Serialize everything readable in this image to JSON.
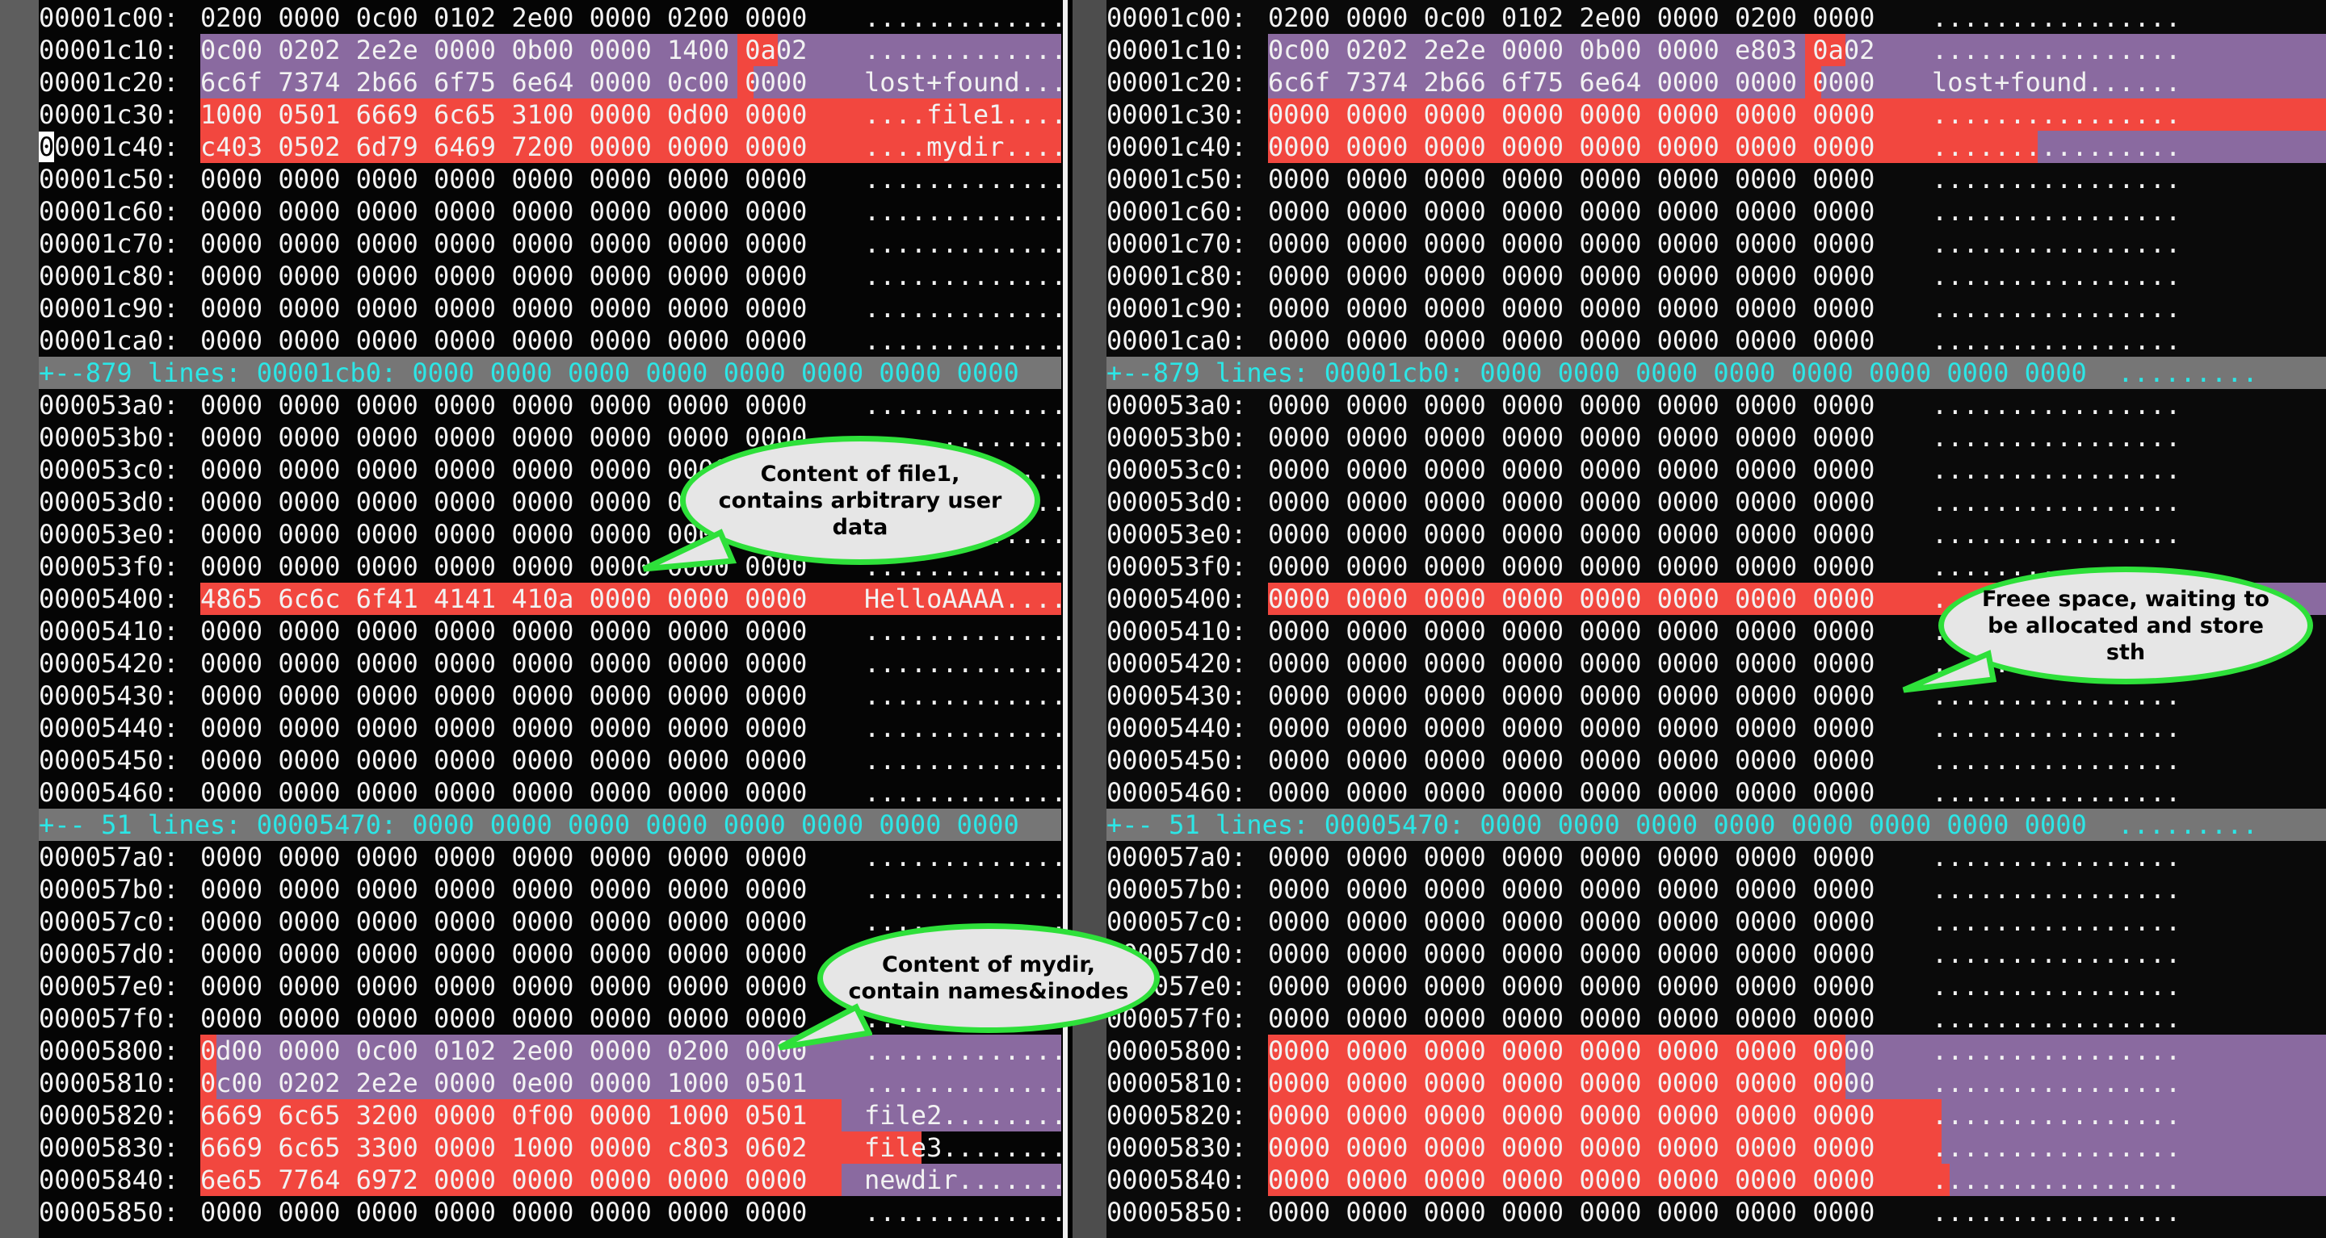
{
  "fold_lines": {
    "first": "+--879 lines: 00001cb0: 0000 0000 0000 0000 0000 0000 0000 0000",
    "second": "+-- 51 lines: 00005470: 0000 0000 0000 0000 0000 0000 0000 0000",
    "sign": "+",
    "right_first": "+--879 lines: 00001cb0: 0000 0000 0000 0000 0000 0000 0000 0000  .........",
    "right_second": "+-- 51 lines: 00005470: 0000 0000 0000 0000 0000 0000 0000 0000  ........."
  },
  "colors": {
    "highlight_purple": "#8a6aa0",
    "highlight_red": "#f2473f",
    "fold_bg": "#767676",
    "fold_text": "#2ce6e6",
    "bubble_border": "#2ee03a"
  },
  "left_pane": {
    "rows": [
      {
        "addr": "00001c00:",
        "hex": "0200 0000 0c00 0102 2e00 0000 0200 0000",
        "text": "................"
      },
      {
        "addr": "00001c10:",
        "hex": "0c00 0202 2e2e 0000 0b00 0000 1400 0a02",
        "text": "................"
      },
      {
        "addr": "00001c20:",
        "hex": "6c6f 7374 2b66 6f75 6e64 0000 0c00 0000",
        "text": "lost+found......"
      },
      {
        "addr": "00001c30:",
        "hex": "1000 0501 6669 6c65 3100 0000 0d00 0000",
        "text": "....file1......."
      },
      {
        "addr": "00001c40:",
        "hex": "c403 0502 6d79 6469 7200 0000 0000 0000",
        "text": "....mydir......."
      },
      {
        "addr": "00001c50:",
        "hex": "0000 0000 0000 0000 0000 0000 0000 0000",
        "text": "................"
      },
      {
        "addr": "00001c60:",
        "hex": "0000 0000 0000 0000 0000 0000 0000 0000",
        "text": "................"
      },
      {
        "addr": "00001c70:",
        "hex": "0000 0000 0000 0000 0000 0000 0000 0000",
        "text": "................"
      },
      {
        "addr": "00001c80:",
        "hex": "0000 0000 0000 0000 0000 0000 0000 0000",
        "text": "................"
      },
      {
        "addr": "00001c90:",
        "hex": "0000 0000 0000 0000 0000 0000 0000 0000",
        "text": "................"
      },
      {
        "addr": "00001ca0:",
        "hex": "0000 0000 0000 0000 0000 0000 0000 0000",
        "text": "................"
      },
      {
        "fold": "first"
      },
      {
        "addr": "000053a0:",
        "hex": "0000 0000 0000 0000 0000 0000 0000 0000",
        "text": "................"
      },
      {
        "addr": "000053b0:",
        "hex": "0000 0000 0000 0000 0000 0000 0000 0000",
        "text": "................"
      },
      {
        "addr": "000053c0:",
        "hex": "0000 0000 0000 0000 0000 0000 0000 0000",
        "text": "................"
      },
      {
        "addr": "000053d0:",
        "hex": "0000 0000 0000 0000 0000 0000 0000 0000",
        "text": "................"
      },
      {
        "addr": "000053e0:",
        "hex": "0000 0000 0000 0000 0000 0000 0000 0000",
        "text": "................"
      },
      {
        "addr": "000053f0:",
        "hex": "0000 0000 0000 0000 0000 0000 0000 0000",
        "text": "................"
      },
      {
        "addr": "00005400:",
        "hex": "4865 6c6c 6f41 4141 410a 0000 0000 0000",
        "text": "HelloAAAA......."
      },
      {
        "addr": "00005410:",
        "hex": "0000 0000 0000 0000 0000 0000 0000 0000",
        "text": "................"
      },
      {
        "addr": "00005420:",
        "hex": "0000 0000 0000 0000 0000 0000 0000 0000",
        "text": "................"
      },
      {
        "addr": "00005430:",
        "hex": "0000 0000 0000 0000 0000 0000 0000 0000",
        "text": "................"
      },
      {
        "addr": "00005440:",
        "hex": "0000 0000 0000 0000 0000 0000 0000 0000",
        "text": "................"
      },
      {
        "addr": "00005450:",
        "hex": "0000 0000 0000 0000 0000 0000 0000 0000",
        "text": "................"
      },
      {
        "addr": "00005460:",
        "hex": "0000 0000 0000 0000 0000 0000 0000 0000",
        "text": "................"
      },
      {
        "fold": "second"
      },
      {
        "addr": "000057a0:",
        "hex": "0000 0000 0000 0000 0000 0000 0000 0000",
        "text": "................"
      },
      {
        "addr": "000057b0:",
        "hex": "0000 0000 0000 0000 0000 0000 0000 0000",
        "text": "................"
      },
      {
        "addr": "000057c0:",
        "hex": "0000 0000 0000 0000 0000 0000 0000 0000",
        "text": "................"
      },
      {
        "addr": "000057d0:",
        "hex": "0000 0000 0000 0000 0000 0000 0000 0000",
        "text": "................"
      },
      {
        "addr": "000057e0:",
        "hex": "0000 0000 0000 0000 0000 0000 0000 0000",
        "text": "................"
      },
      {
        "addr": "000057f0:",
        "hex": "0000 0000 0000 0000 0000 0000 0000 0000",
        "text": "................"
      },
      {
        "addr": "00005800:",
        "hex": "0d00 0000 0c00 0102 2e00 0000 0200 0000",
        "text": "................"
      },
      {
        "addr": "00005810:",
        "hex": "0c00 0202 2e2e 0000 0e00 0000 1000 0501",
        "text": "................"
      },
      {
        "addr": "00005820:",
        "hex": "6669 6c65 3200 0000 0f00 0000 1000 0501",
        "text": "file2..........."
      },
      {
        "addr": "00005830:",
        "hex": "6669 6c65 3300 0000 1000 0000 c803 0602",
        "text": "file3..........."
      },
      {
        "addr": "00005840:",
        "hex": "6e65 7764 6972 0000 0000 0000 0000 0000",
        "text": "newdir.........."
      },
      {
        "addr": "00005850:",
        "hex": "0000 0000 0000 0000 0000 0000 0000 0000",
        "text": "................"
      }
    ]
  },
  "right_pane": {
    "rows": [
      {
        "addr": "00001c00:",
        "hex": "0200 0000 0c00 0102 2e00 0000 0200 0000",
        "text": "................"
      },
      {
        "addr": "00001c10:",
        "hex": "0c00 0202 2e2e 0000 0b00 0000 e803 0a02",
        "text": "................"
      },
      {
        "addr": "00001c20:",
        "hex": "6c6f 7374 2b66 6f75 6e64 0000 0000 0000",
        "text": "lost+found......"
      },
      {
        "addr": "00001c30:",
        "hex": "0000 0000 0000 0000 0000 0000 0000 0000",
        "text": "................"
      },
      {
        "addr": "00001c40:",
        "hex": "0000 0000 0000 0000 0000 0000 0000 0000",
        "text": "................"
      },
      {
        "addr": "00001c50:",
        "hex": "0000 0000 0000 0000 0000 0000 0000 0000",
        "text": "................"
      },
      {
        "addr": "00001c60:",
        "hex": "0000 0000 0000 0000 0000 0000 0000 0000",
        "text": "................"
      },
      {
        "addr": "00001c70:",
        "hex": "0000 0000 0000 0000 0000 0000 0000 0000",
        "text": "................"
      },
      {
        "addr": "00001c80:",
        "hex": "0000 0000 0000 0000 0000 0000 0000 0000",
        "text": "................"
      },
      {
        "addr": "00001c90:",
        "hex": "0000 0000 0000 0000 0000 0000 0000 0000",
        "text": "................"
      },
      {
        "addr": "00001ca0:",
        "hex": "0000 0000 0000 0000 0000 0000 0000 0000",
        "text": "................"
      },
      {
        "fold": "right_first"
      },
      {
        "addr": "000053a0:",
        "hex": "0000 0000 0000 0000 0000 0000 0000 0000",
        "text": "................"
      },
      {
        "addr": "000053b0:",
        "hex": "0000 0000 0000 0000 0000 0000 0000 0000",
        "text": "................"
      },
      {
        "addr": "000053c0:",
        "hex": "0000 0000 0000 0000 0000 0000 0000 0000",
        "text": "................"
      },
      {
        "addr": "000053d0:",
        "hex": "0000 0000 0000 0000 0000 0000 0000 0000",
        "text": "................"
      },
      {
        "addr": "000053e0:",
        "hex": "0000 0000 0000 0000 0000 0000 0000 0000",
        "text": "................"
      },
      {
        "addr": "000053f0:",
        "hex": "0000 0000 0000 0000 0000 0000 0000 0000",
        "text": "................"
      },
      {
        "addr": "00005400:",
        "hex": "0000 0000 0000 0000 0000 0000 0000 0000",
        "text": "................"
      },
      {
        "addr": "00005410:",
        "hex": "0000 0000 0000 0000 0000 0000 0000 0000",
        "text": "................"
      },
      {
        "addr": "00005420:",
        "hex": "0000 0000 0000 0000 0000 0000 0000 0000",
        "text": "................"
      },
      {
        "addr": "00005430:",
        "hex": "0000 0000 0000 0000 0000 0000 0000 0000",
        "text": "................"
      },
      {
        "addr": "00005440:",
        "hex": "0000 0000 0000 0000 0000 0000 0000 0000",
        "text": "................"
      },
      {
        "addr": "00005450:",
        "hex": "0000 0000 0000 0000 0000 0000 0000 0000",
        "text": "................"
      },
      {
        "addr": "00005460:",
        "hex": "0000 0000 0000 0000 0000 0000 0000 0000",
        "text": "................"
      },
      {
        "fold": "right_second"
      },
      {
        "addr": "000057a0:",
        "hex": "0000 0000 0000 0000 0000 0000 0000 0000",
        "text": "................"
      },
      {
        "addr": "000057b0:",
        "hex": "0000 0000 0000 0000 0000 0000 0000 0000",
        "text": "................"
      },
      {
        "addr": "000057c0:",
        "hex": "0000 0000 0000 0000 0000 0000 0000 0000",
        "text": "................"
      },
      {
        "addr": "000057d0:",
        "hex": "0000 0000 0000 0000 0000 0000 0000 0000",
        "text": "................"
      },
      {
        "addr": "000057e0:",
        "hex": "0000 0000 0000 0000 0000 0000 0000 0000",
        "text": "................"
      },
      {
        "addr": "000057f0:",
        "hex": "0000 0000 0000 0000 0000 0000 0000 0000",
        "text": "................"
      },
      {
        "addr": "00005800:",
        "hex": "0000 0000 0000 0000 0000 0000 0000 0000",
        "text": "................"
      },
      {
        "addr": "00005810:",
        "hex": "0000 0000 0000 0000 0000 0000 0000 0000",
        "text": "................"
      },
      {
        "addr": "00005820:",
        "hex": "0000 0000 0000 0000 0000 0000 0000 0000",
        "text": "................"
      },
      {
        "addr": "00005830:",
        "hex": "0000 0000 0000 0000 0000 0000 0000 0000",
        "text": "................"
      },
      {
        "addr": "00005840:",
        "hex": "0000 0000 0000 0000 0000 0000 0000 0000",
        "text": "................"
      },
      {
        "addr": "00005850:",
        "hex": "0000 0000 0000 0000 0000 0000 0000 0000",
        "text": "................"
      }
    ]
  },
  "callouts": {
    "file1": "Content of file1, contains arbitrary user data",
    "mydir": "Content of mydir, contain names&inodes",
    "free": "Freee space, waiting to be allocated and store sth"
  }
}
